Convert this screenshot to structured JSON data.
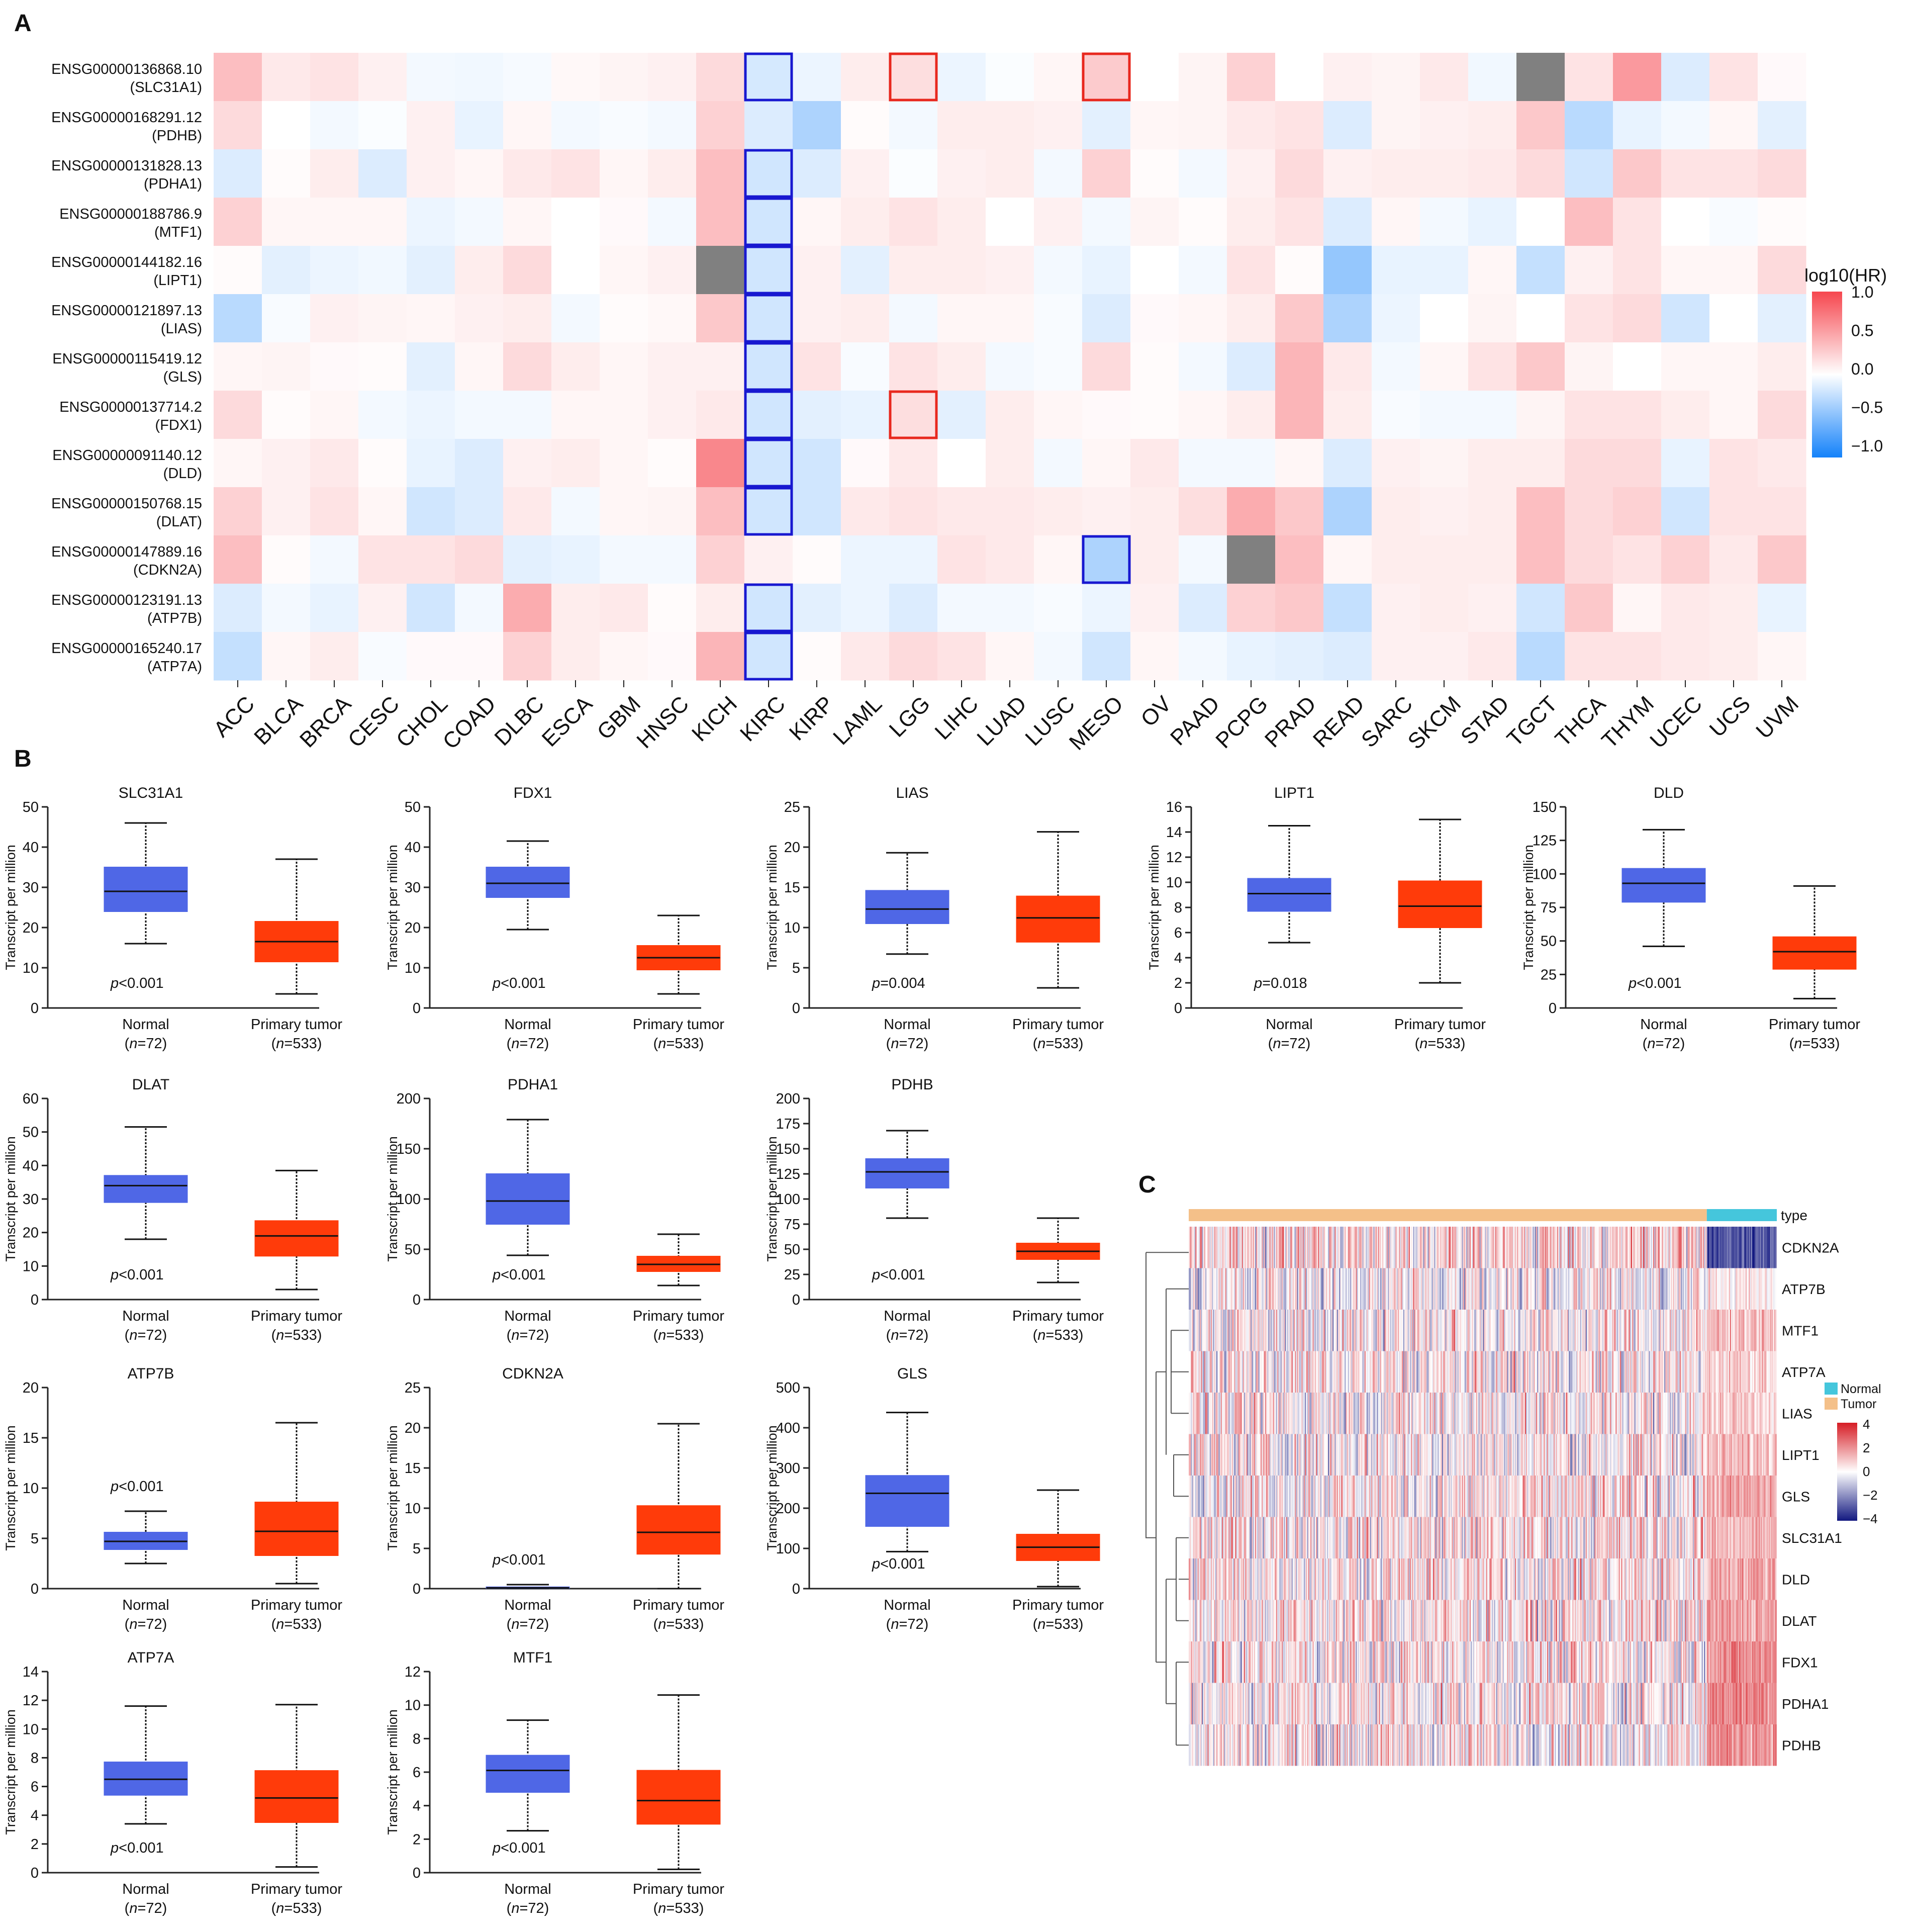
{
  "panel_labels": [
    "A",
    "B",
    "C"
  ],
  "colors": {
    "normal_box": "#4f67e6",
    "tumor_box": "#ff3b0a",
    "missing": "#808080",
    "sig_high": "#e8281e",
    "sig_low": "#1818d0",
    "normal_annot": "#45c6dc",
    "tumor_annot": "#f4c089"
  },
  "chart_data": [
    {
      "id": "A",
      "type": "heatmap",
      "title": "",
      "legend_title": "log10(HR)",
      "color_ticks": [
        "1.0",
        "0.5",
        "0.0",
        "−0.5",
        "−1.0"
      ],
      "color_range": [
        -1.0,
        1.0
      ],
      "row_ids": [
        "ENSG00000136868.10",
        "ENSG00000168291.12",
        "ENSG00000131828.13",
        "ENSG00000188786.9",
        "ENSG00000144182.16",
        "ENSG00000121897.13",
        "ENSG00000115419.12",
        "ENSG00000137714.2",
        "ENSG00000091140.12",
        "ENSG00000150768.15",
        "ENSG00000147889.16",
        "ENSG00000123191.13",
        "ENSG00000165240.17"
      ],
      "row_genes": [
        "(SLC31A1)",
        "(PDHB)",
        "(PDHA1)",
        "(MTF1)",
        "(LIPT1)",
        "(LIAS)",
        "(GLS)",
        "(FDX1)",
        "(DLD)",
        "(DLAT)",
        "(CDKN2A)",
        "(ATP7B)",
        "(ATP7A)"
      ],
      "columns": [
        "ACC",
        "BLCA",
        "BRCA",
        "CESC",
        "CHOL",
        "COAD",
        "DLBC",
        "ESCA",
        "GBM",
        "HNSC",
        "KICH",
        "KIRC",
        "KIRP",
        "LAML",
        "LGG",
        "LIHC",
        "LUAD",
        "LUSC",
        "MESO",
        "OV",
        "PAAD",
        "PCPG",
        "PRAD",
        "READ",
        "SARC",
        "SKCM",
        "STAD",
        "TGCT",
        "THCA",
        "THYM",
        "UCEC",
        "UCS",
        "UVM"
      ],
      "values": [
        [
          0.35,
          0.12,
          0.15,
          0.08,
          -0.05,
          -0.06,
          -0.04,
          0.04,
          0.06,
          0.08,
          0.2,
          -0.18,
          -0.08,
          0.1,
          0.18,
          -0.08,
          -0.02,
          0.05,
          0.28,
          0.0,
          0.06,
          0.25,
          0.0,
          0.08,
          0.06,
          0.12,
          -0.06,
          null,
          0.15,
          0.55,
          -0.15,
          0.15,
          0.03
        ],
        [
          0.2,
          0.0,
          -0.05,
          -0.02,
          0.08,
          -0.1,
          0.05,
          -0.05,
          -0.03,
          -0.05,
          0.25,
          -0.15,
          -0.35,
          0.02,
          -0.05,
          0.1,
          0.1,
          0.08,
          -0.12,
          0.05,
          0.06,
          0.12,
          0.15,
          -0.15,
          0.06,
          0.08,
          0.1,
          0.3,
          -0.3,
          -0.1,
          -0.05,
          0.05,
          -0.12
        ],
        [
          -0.15,
          0.02,
          0.1,
          -0.15,
          0.08,
          0.05,
          0.12,
          0.15,
          0.05,
          0.1,
          0.35,
          -0.2,
          -0.15,
          0.08,
          -0.02,
          0.08,
          0.1,
          -0.05,
          0.25,
          0.02,
          -0.05,
          0.08,
          0.2,
          0.08,
          0.1,
          0.1,
          0.12,
          0.2,
          -0.2,
          0.3,
          0.15,
          0.15,
          0.2
        ],
        [
          0.25,
          0.05,
          0.05,
          0.05,
          -0.08,
          -0.05,
          0.05,
          0.0,
          0.03,
          -0.05,
          0.35,
          -0.2,
          0.05,
          0.1,
          0.15,
          0.1,
          0.0,
          0.08,
          -0.05,
          0.06,
          0.02,
          0.1,
          0.15,
          -0.15,
          0.05,
          -0.05,
          -0.1,
          0.0,
          0.35,
          0.15,
          0.0,
          -0.03,
          0.02
        ],
        [
          0.02,
          -0.12,
          -0.08,
          -0.06,
          -0.12,
          0.1,
          0.2,
          0.0,
          0.05,
          0.08,
          null,
          -0.2,
          0.08,
          -0.12,
          0.1,
          0.1,
          0.08,
          -0.05,
          -0.1,
          0.0,
          -0.05,
          0.15,
          0.02,
          -0.45,
          -0.1,
          -0.1,
          0.05,
          -0.25,
          0.08,
          0.15,
          0.05,
          0.05,
          0.2
        ],
        [
          -0.3,
          -0.03,
          0.08,
          0.06,
          0.05,
          0.08,
          0.1,
          -0.05,
          0.02,
          0.04,
          0.3,
          -0.2,
          0.08,
          0.1,
          -0.05,
          0.05,
          0.05,
          -0.03,
          -0.15,
          0.03,
          0.05,
          0.1,
          0.3,
          -0.35,
          -0.08,
          0.0,
          0.06,
          0.0,
          0.15,
          0.2,
          -0.2,
          0.0,
          -0.12
        ],
        [
          0.05,
          0.06,
          0.03,
          0.02,
          -0.12,
          0.05,
          0.2,
          0.1,
          0.05,
          0.08,
          0.08,
          -0.2,
          0.15,
          -0.03,
          0.15,
          0.1,
          -0.05,
          -0.03,
          0.2,
          0.02,
          -0.05,
          -0.15,
          0.4,
          0.12,
          -0.05,
          0.05,
          0.15,
          0.3,
          0.06,
          0.0,
          0.05,
          0.05,
          0.1
        ],
        [
          0.2,
          0.02,
          0.05,
          -0.05,
          -0.08,
          -0.05,
          -0.05,
          0.05,
          0.05,
          0.08,
          0.12,
          -0.2,
          -0.12,
          -0.1,
          0.18,
          -0.12,
          0.1,
          0.05,
          0.03,
          0.02,
          0.05,
          0.1,
          0.4,
          0.1,
          -0.03,
          -0.05,
          -0.05,
          0.06,
          0.15,
          0.15,
          0.1,
          0.05,
          0.2
        ],
        [
          0.05,
          0.08,
          0.12,
          0.02,
          -0.1,
          -0.15,
          0.08,
          0.1,
          0.05,
          0.02,
          0.65,
          -0.2,
          -0.2,
          0.03,
          0.12,
          0.0,
          0.1,
          -0.05,
          0.05,
          0.12,
          -0.05,
          -0.05,
          0.05,
          -0.15,
          0.08,
          0.06,
          0.1,
          0.1,
          0.2,
          0.2,
          -0.1,
          0.15,
          0.12
        ],
        [
          0.25,
          0.08,
          0.15,
          0.05,
          -0.2,
          -0.15,
          0.12,
          -0.05,
          0.05,
          0.06,
          0.35,
          -0.2,
          -0.2,
          0.12,
          0.15,
          0.12,
          0.12,
          0.1,
          0.08,
          0.1,
          0.18,
          0.45,
          0.3,
          -0.35,
          0.1,
          0.08,
          0.1,
          0.35,
          0.2,
          0.25,
          -0.2,
          0.15,
          0.15
        ],
        [
          0.35,
          0.02,
          -0.05,
          0.15,
          0.15,
          0.2,
          -0.12,
          -0.1,
          -0.05,
          -0.05,
          0.25,
          0.08,
          0.02,
          -0.08,
          -0.08,
          0.15,
          0.12,
          0.05,
          -0.35,
          0.1,
          -0.05,
          null,
          0.35,
          0.05,
          0.1,
          0.1,
          0.1,
          0.35,
          0.2,
          0.15,
          0.25,
          0.12,
          0.3
        ],
        [
          -0.15,
          -0.05,
          -0.1,
          0.08,
          -0.2,
          -0.05,
          0.45,
          0.1,
          0.12,
          0.02,
          0.1,
          -0.2,
          -0.12,
          -0.08,
          -0.15,
          -0.05,
          -0.05,
          -0.03,
          -0.08,
          0.08,
          -0.15,
          0.25,
          0.3,
          -0.25,
          0.08,
          0.1,
          0.08,
          -0.2,
          0.3,
          0.05,
          0.12,
          0.1,
          -0.1
        ],
        [
          -0.25,
          0.05,
          0.1,
          -0.03,
          0.03,
          0.03,
          0.25,
          0.1,
          0.05,
          0.03,
          0.4,
          -0.2,
          0.02,
          0.12,
          0.2,
          0.15,
          0.05,
          -0.05,
          -0.2,
          0.05,
          -0.05,
          -0.1,
          -0.12,
          -0.15,
          0.08,
          0.08,
          0.12,
          -0.3,
          0.15,
          0.15,
          0.12,
          0.1,
          0.05
        ]
      ],
      "highlight_high": [
        [
          0,
          14
        ],
        [
          0,
          18
        ],
        [
          7,
          14
        ]
      ],
      "highlight_low": [
        [
          0,
          11
        ],
        [
          2,
          11
        ],
        [
          3,
          11
        ],
        [
          4,
          11
        ],
        [
          5,
          11
        ],
        [
          6,
          11
        ],
        [
          7,
          11
        ],
        [
          8,
          11
        ],
        [
          9,
          11
        ],
        [
          10,
          18
        ],
        [
          11,
          11
        ],
        [
          12,
          11
        ]
      ]
    },
    {
      "id": "B",
      "type": "box",
      "ylabel": "Transcript per million",
      "group_names": [
        "Normal",
        "Primary tumor"
      ],
      "group_ns": [
        "(n=72)",
        "(n=533)"
      ],
      "plots": [
        {
          "title": "SLC31A1",
          "ylim": [
            0,
            50
          ],
          "ticks": [
            0,
            10,
            20,
            30,
            40,
            50
          ],
          "p": "p<0.001",
          "normal": [
            16,
            24,
            29,
            35,
            46
          ],
          "tumor": [
            3.5,
            11.5,
            16.5,
            21.5,
            37
          ]
        },
        {
          "title": "FDX1",
          "ylim": [
            0,
            50
          ],
          "ticks": [
            0,
            10,
            20,
            30,
            40,
            50
          ],
          "p": "p<0.001",
          "normal": [
            19.5,
            27.5,
            31,
            35,
            41.5
          ],
          "tumor": [
            3.5,
            9.5,
            12.5,
            15.5,
            23
          ]
        },
        {
          "title": "LIAS",
          "ylim": [
            0,
            25
          ],
          "ticks": [
            0,
            5,
            10,
            15,
            20,
            25
          ],
          "p": "p=0.004",
          "normal": [
            6.7,
            10.5,
            12.3,
            14.6,
            19.3
          ],
          "tumor": [
            2.5,
            8.2,
            11.2,
            13.9,
            21.9
          ]
        },
        {
          "title": "LIPT1",
          "ylim": [
            0,
            16
          ],
          "ticks": [
            0,
            2,
            4,
            6,
            8,
            10,
            12,
            14,
            16
          ],
          "p": "p=0.018",
          "normal": [
            5.2,
            7.7,
            9.1,
            10.3,
            14.5
          ],
          "tumor": [
            2.0,
            6.4,
            8.1,
            10.1,
            15.0
          ]
        },
        {
          "title": "DLD",
          "ylim": [
            0,
            150
          ],
          "ticks": [
            0,
            25,
            50,
            75,
            100,
            125,
            150
          ],
          "p": "p<0.001",
          "normal": [
            46,
            79,
            93,
            104,
            133
          ],
          "tumor": [
            7,
            29,
            42,
            53,
            91
          ]
        },
        {
          "title": "DLAT",
          "ylim": [
            0,
            60
          ],
          "ticks": [
            0,
            10,
            20,
            30,
            40,
            50,
            60
          ],
          "p": "p<0.001",
          "normal": [
            18,
            29,
            34,
            37,
            51.5
          ],
          "tumor": [
            3,
            13,
            19,
            23.5,
            38.5
          ]
        },
        {
          "title": "PDHA1",
          "ylim": [
            0,
            200
          ],
          "ticks": [
            0,
            50,
            100,
            150,
            200
          ],
          "p": "p<0.001",
          "normal": [
            44,
            75,
            98,
            125,
            179
          ],
          "tumor": [
            14,
            28,
            35,
            43,
            65
          ]
        },
        {
          "title": "PDHB",
          "ylim": [
            0,
            200
          ],
          "ticks": [
            0,
            25,
            50,
            75,
            100,
            125,
            150,
            175,
            200
          ],
          "p": "p<0.001",
          "normal": [
            81,
            111,
            127,
            140,
            168
          ],
          "tumor": [
            17,
            40,
            48,
            56,
            81
          ]
        },
        {
          "title": "ATP7B",
          "ylim": [
            0,
            20
          ],
          "ticks": [
            0,
            5,
            10,
            15,
            20
          ],
          "p": "p<0.001",
          "normal": [
            2.5,
            3.9,
            4.7,
            5.6,
            7.7
          ],
          "tumor": [
            0.5,
            3.3,
            5.7,
            8.6,
            16.5
          ]
        },
        {
          "title": "CDKN2A",
          "ylim": [
            0,
            25
          ],
          "ticks": [
            0,
            5,
            10,
            15,
            20,
            25
          ],
          "p": "p<0.001",
          "normal": [
            0.0,
            0.05,
            0.1,
            0.2,
            0.5
          ],
          "tumor": [
            0.0,
            4.3,
            7.0,
            10.3,
            20.5
          ]
        },
        {
          "title": "GLS",
          "ylim": [
            0,
            500
          ],
          "ticks": [
            0,
            100,
            200,
            300,
            400,
            500
          ],
          "p": "p<0.001",
          "normal": [
            92,
            155,
            237,
            281,
            438
          ],
          "tumor": [
            5,
            70,
            103,
            135,
            245
          ]
        },
        {
          "title": "ATP7A",
          "ylim": [
            0,
            14
          ],
          "ticks": [
            0,
            2,
            4,
            6,
            8,
            10,
            12,
            14
          ],
          "p": "p<0.001",
          "normal": [
            3.4,
            5.4,
            6.5,
            7.7,
            11.6
          ],
          "tumor": [
            0.4,
            3.5,
            5.2,
            7.1,
            11.7
          ]
        },
        {
          "title": "MTF1",
          "ylim": [
            0,
            12
          ],
          "ticks": [
            0,
            2,
            4,
            6,
            8,
            10,
            12
          ],
          "p": "p<0.001",
          "normal": [
            2.5,
            4.8,
            6.1,
            7.0,
            9.1
          ],
          "tumor": [
            0.2,
            2.9,
            4.3,
            6.1,
            10.6
          ]
        }
      ]
    },
    {
      "id": "C",
      "type": "heatmap",
      "annotation_label": "type",
      "legend_types": [
        "Normal",
        "Tumor"
      ],
      "color_ticks": [
        "4",
        "2",
        "0",
        "−2",
        "−4"
      ],
      "color_range": [
        -4,
        4
      ],
      "genes": [
        "CDKN2A",
        "ATP7B",
        "MTF1",
        "ATP7A",
        "LIAS",
        "LIPT1",
        "GLS",
        "SLC31A1",
        "DLD",
        "DLAT",
        "FDX1",
        "PDHA1",
        "PDHB"
      ],
      "n_tumor": 533,
      "n_normal": 72,
      "normal_mean_z": [
        -3.0,
        0.3,
        1.2,
        0.9,
        0.9,
        1.1,
        1.5,
        1.3,
        1.6,
        1.6,
        2.0,
        2.2,
        2.0
      ],
      "tumor_mean_z": [
        0.6,
        0.0,
        0.2,
        0.2,
        0.2,
        0.2,
        0.3,
        0.4,
        0.4,
        0.4,
        0.3,
        0.3,
        0.3
      ]
    }
  ]
}
